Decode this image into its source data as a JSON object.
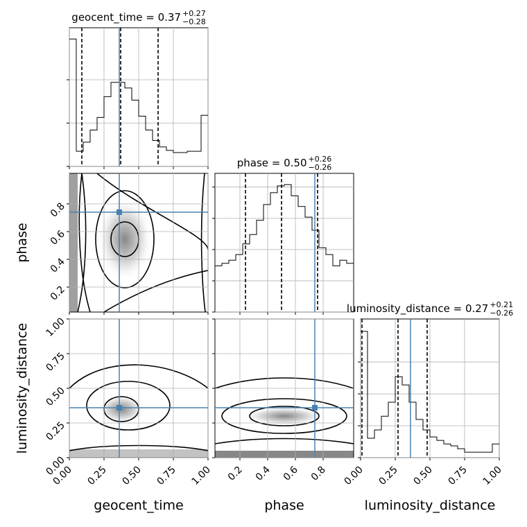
{
  "chart_data": {
    "type": "corner",
    "truth_color": "#4682b4",
    "hist_color": "#000000",
    "grid": true,
    "parameters": [
      {
        "label": "geocent_time",
        "title": "geocent_time = 0.37",
        "title_upper": "+0.27",
        "title_lower": "−0.28",
        "lim": [
          0,
          1
        ],
        "ticks": [
          {
            "value": 0,
            "label": "0.00"
          },
          0.25,
          {
            "value": 0.5,
            "label": "0.50"
          },
          0.75,
          {
            "value": 1,
            "label": "1.00"
          }
        ],
        "truth": 0.36,
        "quantiles": [
          0.09,
          0.37,
          0.64
        ],
        "hist_values": [
          2.94,
          0.35,
          0.56,
          0.84,
          1.13,
          1.61,
          1.94,
          1.94,
          1.81,
          1.53,
          1.16,
          0.84,
          0.6,
          0.45,
          0.37,
          0.32,
          0.32,
          0.35,
          0.35,
          1.18
        ],
        "hist_ylim": [
          0,
          3.2
        ],
        "hist_yticks": [
          0,
          1,
          2
        ]
      },
      {
        "label": "phase",
        "title": "phase = 0.50",
        "title_upper": "+0.26",
        "title_lower": "−0.26",
        "lim": [
          0.02,
          1.02
        ],
        "ticks": [
          0.2,
          0.4,
          0.6,
          0.8
        ],
        "truth": 0.74,
        "quantiles": [
          0.24,
          0.5,
          0.76
        ],
        "hist_values": [
          0.74,
          0.78,
          0.83,
          0.92,
          1.09,
          1.24,
          1.47,
          1.72,
          1.91,
          2.02,
          2.04,
          1.86,
          1.69,
          1.52,
          1.31,
          1.03,
          0.92,
          0.74,
          0.83,
          0.78
        ],
        "hist_ylim": [
          0,
          2.22
        ],
        "hist_yticks": [
          0,
          0.5,
          1,
          1.5,
          2
        ]
      },
      {
        "label": "luminosity_distance",
        "title": "luminosity_distance = 0.27",
        "title_upper": "+0.21",
        "title_lower": "−0.26",
        "lim": [
          0,
          1
        ],
        "ticks": [
          {
            "value": 0,
            "label": "0.00"
          },
          0.25,
          {
            "value": 0.5,
            "label": "0.50"
          },
          0.75,
          {
            "value": 1,
            "label": "1.00"
          }
        ],
        "truth": 0.36,
        "quantiles": [
          0.01,
          0.27,
          0.48
        ],
        "hist_values": [
          3.96,
          0.61,
          0.87,
          1.3,
          1.74,
          2.54,
          2.28,
          1.74,
          1.2,
          0.87,
          0.65,
          0.54,
          0.43,
          0.37,
          0.28,
          0.17,
          0.17,
          0.17,
          0.17,
          0.43
        ],
        "hist_ylim": [
          0,
          4.35
        ],
        "hist_yticks": [
          0,
          1,
          2,
          3
        ]
      }
    ]
  }
}
